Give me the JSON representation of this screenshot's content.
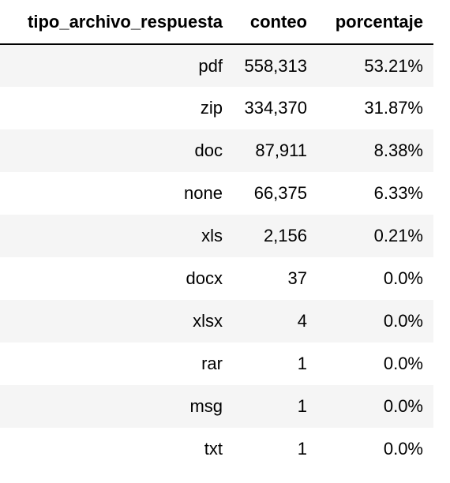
{
  "table": {
    "headers": [
      "tipo_archivo_respuesta",
      "conteo",
      "porcentaje"
    ],
    "rows": [
      [
        "pdf",
        "558,313",
        "53.21%"
      ],
      [
        "zip",
        "334,370",
        "31.87%"
      ],
      [
        "doc",
        "87,911",
        "8.38%"
      ],
      [
        "none",
        "66,375",
        "6.33%"
      ],
      [
        "xls",
        "2,156",
        "0.21%"
      ],
      [
        "docx",
        "37",
        "0.0%"
      ],
      [
        "xlsx",
        "4",
        "0.0%"
      ],
      [
        "rar",
        "1",
        "0.0%"
      ],
      [
        "msg",
        "1",
        "0.0%"
      ],
      [
        "txt",
        "1",
        "0.0%"
      ]
    ]
  }
}
